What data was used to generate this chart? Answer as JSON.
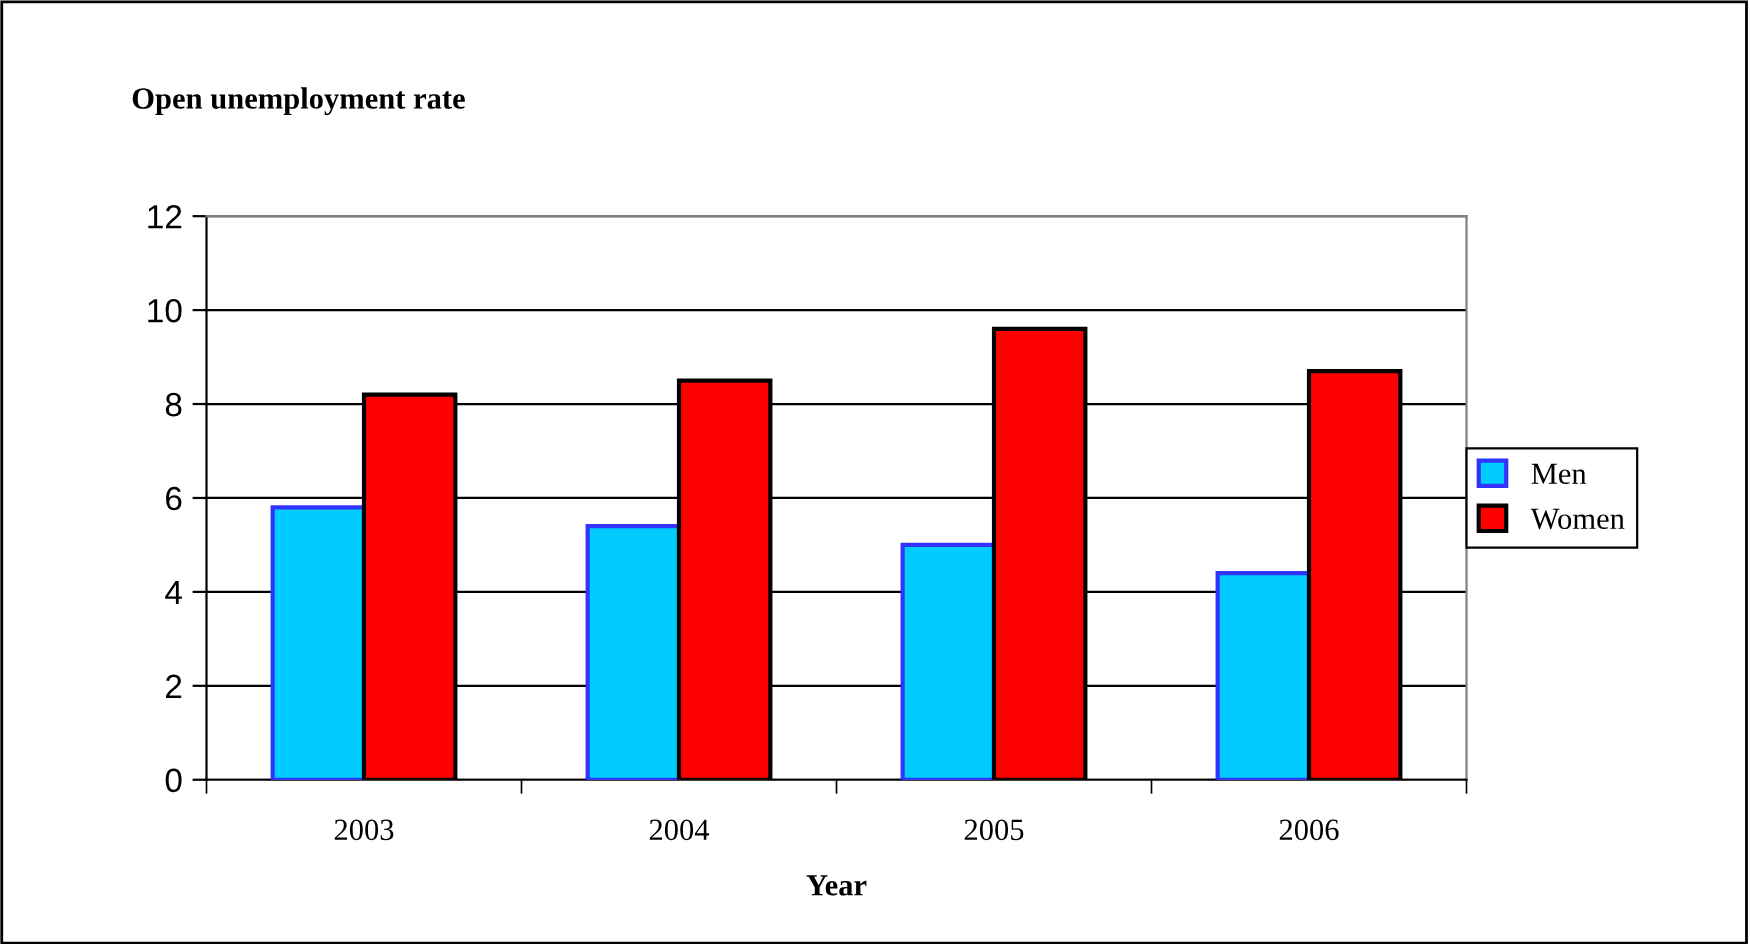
{
  "chart_data": {
    "type": "bar",
    "title": "Open unemployment rate",
    "xlabel": "Year",
    "categories": [
      "2003",
      "2004",
      "2005",
      "2006"
    ],
    "series": [
      {
        "name": "Men",
        "color": "#00ccff",
        "values": [
          5.8,
          5.4,
          5.0,
          4.4
        ]
      },
      {
        "name": "Women",
        "color": "#ff0000",
        "values": [
          8.2,
          8.5,
          9.6,
          8.7
        ]
      }
    ],
    "ylim": [
      0,
      12
    ],
    "yticks": [
      0,
      2,
      4,
      6,
      8,
      10,
      12
    ],
    "grid": "y",
    "legend": "right"
  }
}
